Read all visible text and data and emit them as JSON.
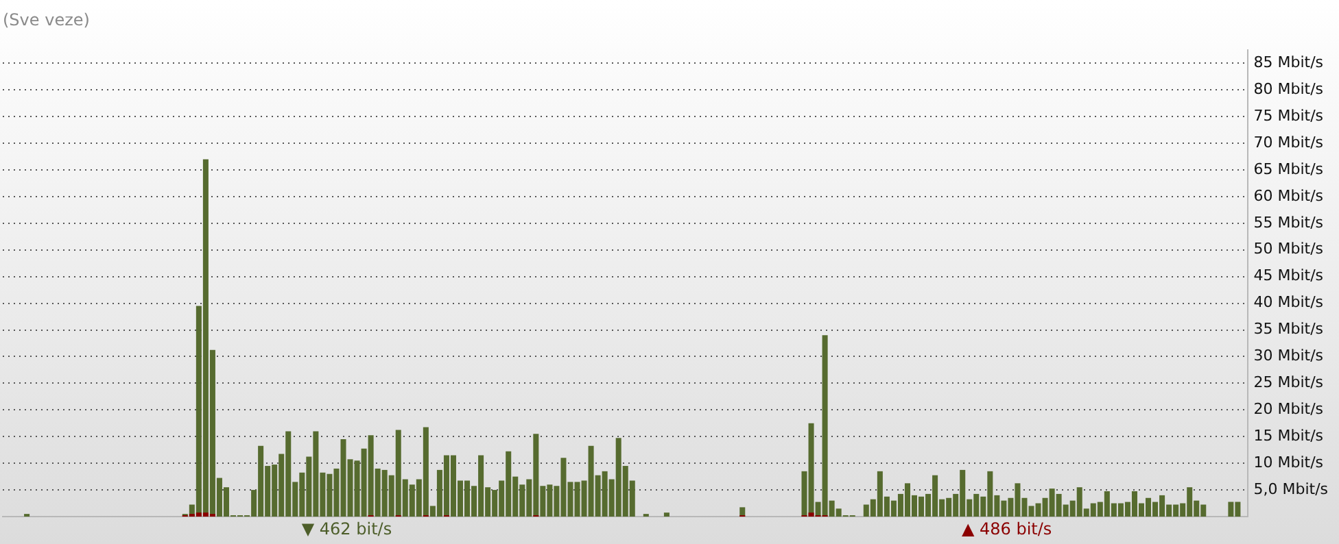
{
  "chart_data": {
    "type": "bar",
    "title": "(Sve veze)",
    "categories": [
      null,
      null,
      null,
      null,
      null,
      null,
      null,
      null,
      null,
      null,
      null,
      null,
      null,
      null,
      null,
      null,
      null,
      null,
      null,
      null,
      null,
      null,
      null,
      null,
      null,
      null,
      null,
      null,
      null,
      null,
      null,
      null,
      null,
      null,
      null,
      null,
      null,
      null,
      null,
      null,
      null,
      null,
      null,
      null,
      null,
      null,
      null,
      null,
      null,
      null,
      null,
      null,
      null,
      null,
      null,
      null,
      null,
      null,
      null,
      null,
      null,
      null,
      null,
      null,
      null,
      null,
      null,
      null,
      null,
      null,
      null,
      null,
      null,
      null,
      null,
      null,
      null,
      null,
      null,
      null,
      null,
      null,
      null,
      null,
      null,
      null,
      null,
      null,
      null,
      null,
      null,
      null,
      null,
      null,
      null,
      null,
      null,
      null,
      null,
      null,
      null,
      null,
      null,
      null,
      null,
      null,
      null,
      null,
      null,
      null,
      null,
      null,
      null,
      null,
      null,
      null,
      null,
      null,
      null,
      null,
      null,
      null,
      null,
      null,
      null,
      null,
      null,
      null,
      null,
      null,
      null,
      null,
      null,
      null,
      null,
      null,
      null,
      null,
      null,
      null,
      null,
      null,
      null,
      null,
      null,
      null,
      null,
      null,
      null,
      null,
      null,
      null,
      null,
      null,
      null,
      null,
      null,
      null,
      null,
      null,
      null,
      null,
      null,
      null,
      null,
      null,
      null,
      null,
      null,
      null,
      null,
      null,
      null,
      null,
      null,
      null,
      null,
      null,
      null,
      null,
      null
    ],
    "series": [
      {
        "color": "#566b2f",
        "values": [
          0,
          0,
          0,
          0.5,
          0,
          0,
          0,
          0,
          0,
          0,
          0,
          0,
          0,
          0,
          0,
          0,
          0,
          0,
          0,
          0,
          0,
          0,
          0,
          0,
          0,
          0,
          0.5,
          2.25,
          39.5,
          67,
          31.25,
          7.25,
          5.5,
          0.25,
          0.25,
          0.25,
          5,
          13.25,
          9.5,
          9.75,
          11.75,
          16,
          6.5,
          8.25,
          11.25,
          16,
          8.25,
          8,
          9,
          14.5,
          10.75,
          10.5,
          12.75,
          15.25,
          9,
          8.75,
          7.75,
          16.25,
          7,
          6,
          7,
          16.75,
          2,
          8.75,
          11.5,
          11.5,
          6.75,
          6.75,
          5.75,
          11.5,
          5.5,
          5,
          6.75,
          12.25,
          7.5,
          6,
          7,
          15.5,
          5.75,
          6,
          5.75,
          11,
          6.5,
          6.5,
          6.75,
          13.25,
          7.75,
          8.5,
          7,
          14.75,
          9.5,
          6.75,
          0,
          0.5,
          0,
          0,
          0.75,
          0,
          0,
          0,
          0,
          0,
          0,
          0,
          0,
          0,
          0,
          1.75,
          0,
          0,
          0,
          0,
          0,
          0,
          0,
          0,
          8.5,
          17.5,
          2.75,
          34,
          3,
          1.5,
          0.25,
          0.25,
          0,
          2.25,
          3.25,
          8.5,
          3.75,
          3,
          4.25,
          6.25,
          4,
          3.75,
          4.25,
          7.75,
          3.25,
          3.5,
          4.25,
          8.75,
          3.25,
          4.25,
          3.75,
          8.5,
          4,
          3,
          3.5,
          6.25,
          3.5,
          2,
          2.5,
          3.5,
          5.25,
          4.25,
          2.25,
          3,
          5.5,
          1.5,
          2.5,
          2.75,
          4.75,
          2.5,
          2.5,
          2.75,
          4.75,
          2.5,
          3.5,
          2.75,
          4,
          2.25,
          2.25,
          2.5,
          5.5,
          3,
          2.25,
          0,
          0,
          0,
          2.75,
          2.75,
          0
        ]
      },
      {
        "color": "#8b0000",
        "values": [
          0,
          0,
          0,
          0,
          0,
          0,
          0,
          0,
          0,
          0,
          0,
          0,
          0,
          0,
          0,
          0,
          0,
          0,
          0,
          0,
          0,
          0,
          0,
          0,
          0,
          0,
          0.25,
          0.5,
          0.75,
          0.75,
          0.5,
          0,
          0,
          0,
          0,
          0,
          0,
          0,
          0,
          0,
          0,
          0,
          0,
          0,
          0,
          0,
          0,
          0,
          0,
          0,
          0,
          0,
          0,
          0.25,
          0,
          0,
          0,
          0.25,
          0,
          0,
          0,
          0.25,
          0,
          0,
          0.25,
          0,
          0,
          0,
          0,
          0,
          0,
          0,
          0,
          0,
          0,
          0,
          0,
          0.25,
          0,
          0,
          0,
          0,
          0,
          0,
          0,
          0,
          0,
          0,
          0,
          0,
          0,
          0,
          0,
          0,
          0,
          0,
          0,
          0,
          0,
          0,
          0,
          0,
          0,
          0,
          0,
          0,
          0,
          0.25,
          0,
          0,
          0,
          0,
          0,
          0,
          0,
          0,
          0.25,
          0.75,
          0.25,
          0.25,
          0,
          0,
          0,
          0,
          0,
          0,
          0,
          0,
          0,
          0,
          0,
          0,
          0,
          0,
          0,
          0,
          0,
          0,
          0,
          0,
          0,
          0,
          0,
          0,
          0,
          0,
          0,
          0,
          0,
          0,
          0,
          0,
          0,
          0,
          0,
          0,
          0,
          0,
          0,
          0,
          0,
          0,
          0,
          0,
          0,
          0,
          0,
          0,
          0,
          0,
          0,
          0,
          0,
          0,
          0,
          0,
          0,
          0,
          0,
          0,
          0
        ]
      }
    ],
    "ylim": [
      0,
      87.5
    ],
    "yticks": [
      {
        "value": 5,
        "label": "5,0 Mbit/s"
      },
      {
        "value": 10,
        "label": "10 Mbit/s"
      },
      {
        "value": 15,
        "label": "15 Mbit/s"
      },
      {
        "value": 20,
        "label": "20 Mbit/s"
      },
      {
        "value": 25,
        "label": "25 Mbit/s"
      },
      {
        "value": 30,
        "label": "30 Mbit/s"
      },
      {
        "value": 35,
        "label": "35 Mbit/s"
      },
      {
        "value": 40,
        "label": "40 Mbit/s"
      },
      {
        "value": 45,
        "label": "45 Mbit/s"
      },
      {
        "value": 50,
        "label": "50 Mbit/s"
      },
      {
        "value": 55,
        "label": "55 Mbit/s"
      },
      {
        "value": 60,
        "label": "60 Mbit/s"
      },
      {
        "value": 65,
        "label": "65 Mbit/s"
      },
      {
        "value": 70,
        "label": "70 Mbit/s"
      },
      {
        "value": 75,
        "label": "75 Mbit/s"
      },
      {
        "value": 80,
        "label": "80 Mbit/s"
      },
      {
        "value": 85,
        "label": "85 Mbit/s"
      }
    ],
    "grid": "y",
    "tick_labels": "y",
    "annotations": [
      "▼ 462 bit/s",
      "▲ 486 bit/s"
    ]
  }
}
